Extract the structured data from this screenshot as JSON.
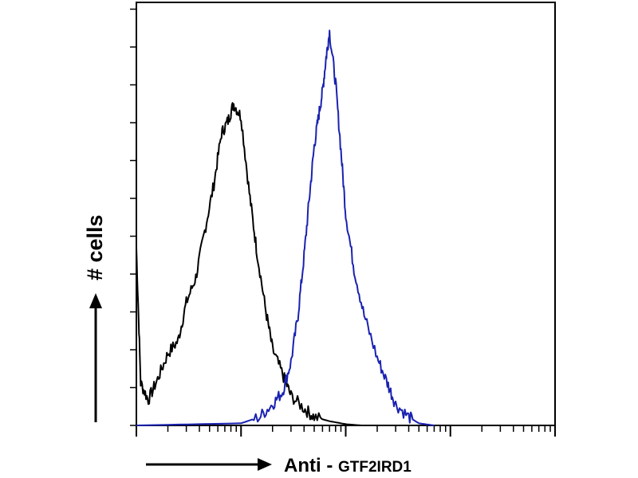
{
  "chart_data": {
    "type": "line",
    "title": "",
    "xlabel": {
      "prefix": "Anti - ",
      "target": "GTF2IRD1"
    },
    "ylabel": "# cells",
    "x_scale": "log",
    "xlim": [
      1,
      10000
    ],
    "ylim": [
      0,
      100
    ],
    "grid": false,
    "legend": "none",
    "series": [
      {
        "color": "#000000",
        "x": [
          1,
          1.1,
          1.3,
          1.6,
          2,
          2.5,
          3,
          3.7,
          4.5,
          5.5,
          6.5,
          7.5,
          8.5,
          10,
          12,
          14,
          17,
          20,
          25,
          30,
          40,
          50,
          70,
          100,
          140
        ],
        "y": [
          42,
          10,
          6,
          11,
          17,
          20,
          29,
          35,
          46,
          57,
          69,
          72,
          76,
          73,
          55,
          42,
          28,
          18,
          12,
          7,
          4,
          2,
          1,
          0.3,
          0
        ]
      },
      {
        "color": "#1a22b0",
        "x": [
          1,
          10,
          15,
          20,
          25,
          30,
          35,
          40,
          45,
          50,
          55,
          60,
          65,
          70,
          80,
          90,
          100,
          120,
          150,
          200,
          250,
          300,
          400,
          500,
          700
        ],
        "y": [
          0,
          0.5,
          2,
          5,
          8,
          15,
          26,
          40,
          54,
          66,
          73,
          79,
          87,
          93,
          81,
          65,
          50,
          37,
          26,
          16,
          10,
          5,
          2,
          0.5,
          0
        ]
      }
    ]
  }
}
